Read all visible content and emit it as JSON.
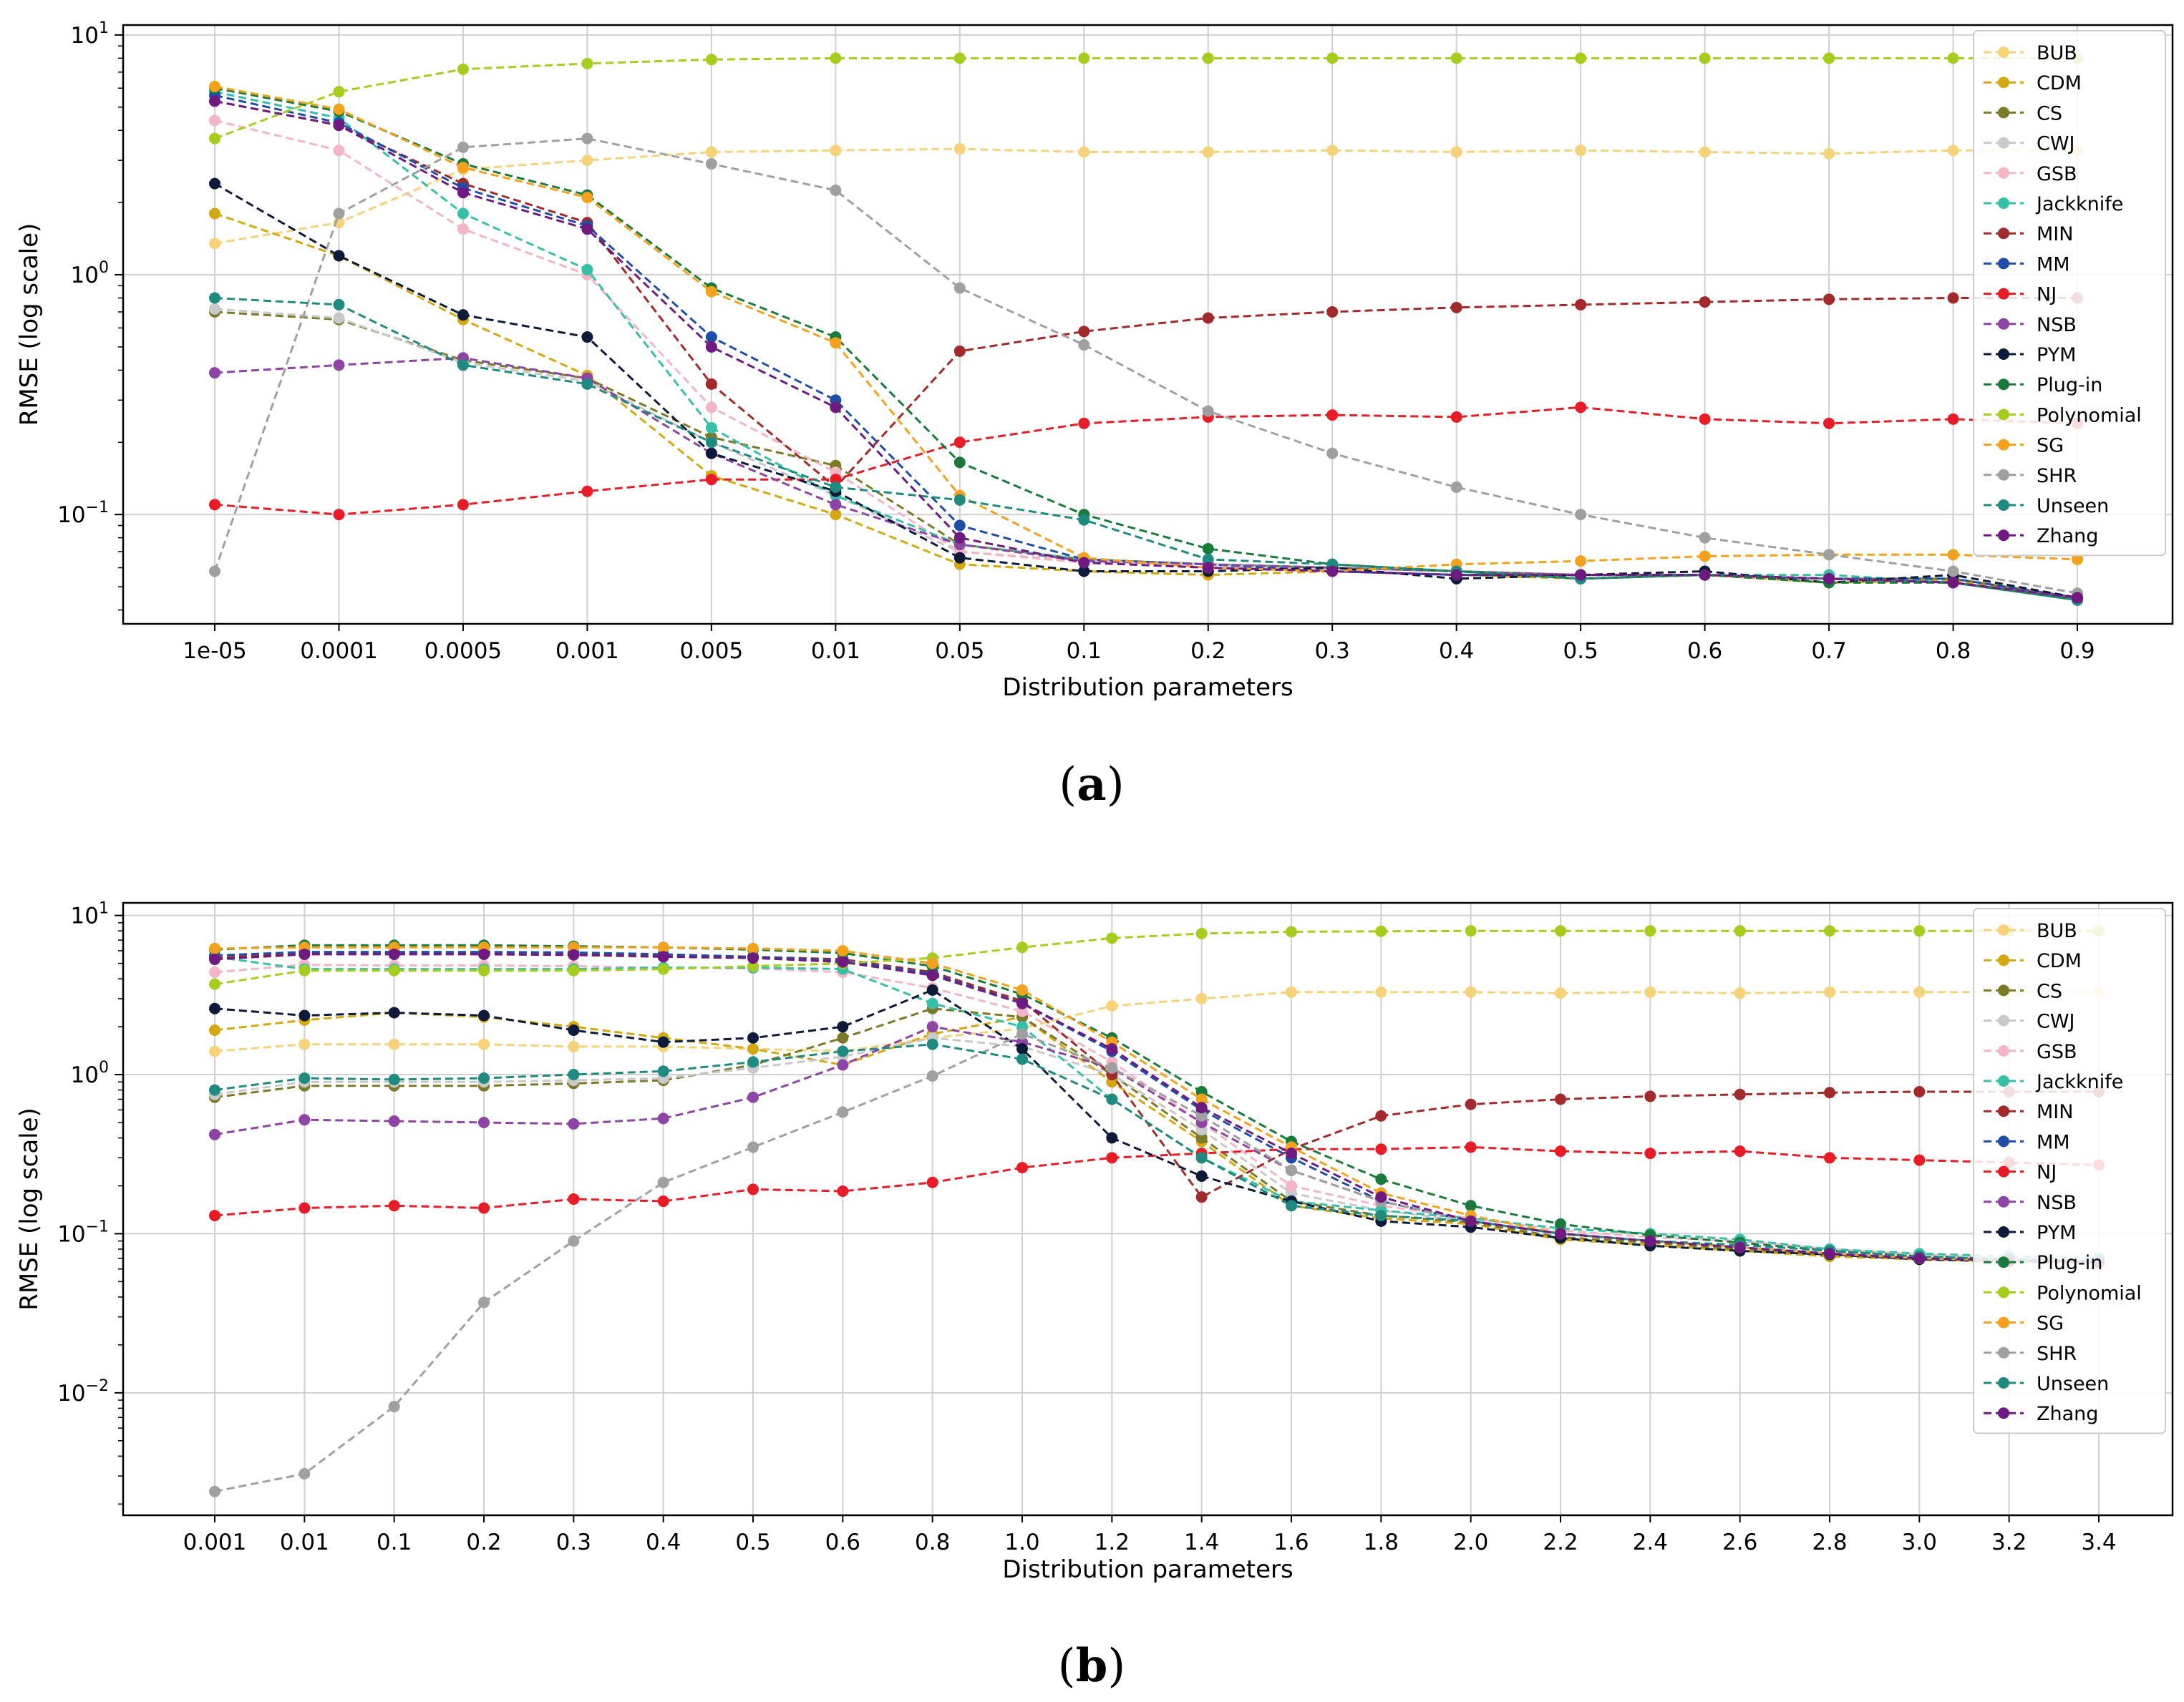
{
  "chart_data": [
    {
      "type": "line",
      "caption": "(a)",
      "caption_letter": "a",
      "xlabel": "Distribution parameters",
      "ylabel": "RMSE (log scale)",
      "yscale": "log",
      "ylim": [
        0.035,
        11
      ],
      "yticks": [
        {
          "value": 0.1,
          "base": "10",
          "exp": "−1"
        },
        {
          "value": 1,
          "base": "10",
          "exp": "0"
        },
        {
          "value": 10,
          "base": "10",
          "exp": "1"
        }
      ],
      "grid": true,
      "legend_position": "top-right",
      "categories": [
        "1e-05",
        "0.0001",
        "0.0005",
        "0.001",
        "0.005",
        "0.01",
        "0.05",
        "0.1",
        "0.2",
        "0.3",
        "0.4",
        "0.5",
        "0.6",
        "0.7",
        "0.8",
        "0.9"
      ],
      "series": [
        {
          "name": "BUB",
          "color": "#f6d37a",
          "values": [
            1.35,
            1.65,
            2.75,
            3.0,
            3.25,
            3.3,
            3.35,
            3.25,
            3.25,
            3.3,
            3.25,
            3.3,
            3.25,
            3.2,
            3.3,
            3.3
          ]
        },
        {
          "name": "CDM",
          "color": "#d4a810",
          "values": [
            1.8,
            1.2,
            0.65,
            0.38,
            0.145,
            0.1,
            0.062,
            0.058,
            0.056,
            0.058,
            0.056,
            0.054,
            0.056,
            0.052,
            0.053,
            0.045
          ]
        },
        {
          "name": "CS",
          "color": "#7a7a28",
          "values": [
            0.7,
            0.65,
            0.44,
            0.37,
            0.21,
            0.16,
            0.075,
            0.065,
            0.062,
            0.06,
            0.058,
            0.056,
            0.056,
            0.054,
            0.054,
            0.045
          ]
        },
        {
          "name": "CWJ",
          "color": "#c9c9c9",
          "values": [
            0.72,
            0.66,
            0.43,
            0.36,
            0.2,
            0.12,
            0.07,
            0.064,
            0.062,
            0.058,
            0.056,
            0.056,
            0.056,
            0.054,
            0.052,
            0.045
          ]
        },
        {
          "name": "GSB",
          "color": "#f4b6c6",
          "values": [
            4.4,
            3.3,
            1.55,
            1.0,
            0.28,
            0.15,
            0.07,
            0.063,
            0.06,
            0.058,
            0.056,
            0.056,
            0.056,
            0.054,
            0.052,
            0.044
          ]
        },
        {
          "name": "Jackknife",
          "color": "#36c0a8",
          "values": [
            5.8,
            4.5,
            1.8,
            1.05,
            0.23,
            0.12,
            0.075,
            0.065,
            0.062,
            0.06,
            0.058,
            0.056,
            0.056,
            0.056,
            0.052,
            0.044
          ]
        },
        {
          "name": "MIN",
          "color": "#a32a2a",
          "values": [
            5.3,
            4.2,
            2.4,
            1.65,
            0.35,
            0.13,
            0.48,
            0.58,
            0.66,
            0.7,
            0.73,
            0.75,
            0.77,
            0.79,
            0.8,
            0.8
          ]
        },
        {
          "name": "MM",
          "color": "#1f4ea8",
          "values": [
            5.6,
            4.3,
            2.3,
            1.6,
            0.55,
            0.3,
            0.09,
            0.065,
            0.062,
            0.058,
            0.056,
            0.056,
            0.056,
            0.054,
            0.054,
            0.045
          ]
        },
        {
          "name": "NJ",
          "color": "#e81c26",
          "values": [
            0.11,
            0.1,
            0.11,
            0.125,
            0.14,
            0.14,
            0.2,
            0.24,
            0.255,
            0.26,
            0.255,
            0.28,
            0.25,
            0.24,
            0.25,
            0.24
          ]
        },
        {
          "name": "NSB",
          "color": "#8e44a4",
          "values": [
            0.39,
            0.42,
            0.45,
            0.37,
            0.18,
            0.11,
            0.075,
            0.064,
            0.062,
            0.06,
            0.058,
            0.056,
            0.056,
            0.054,
            0.052,
            0.045
          ]
        },
        {
          "name": "PYM",
          "color": "#0e1a3a",
          "values": [
            2.4,
            1.2,
            0.68,
            0.55,
            0.18,
            0.125,
            0.066,
            0.058,
            0.058,
            0.06,
            0.054,
            0.056,
            0.058,
            0.052,
            0.056,
            0.045
          ]
        },
        {
          "name": "Plug-in",
          "color": "#1a7a3a",
          "values": [
            6.0,
            4.8,
            2.9,
            2.15,
            0.88,
            0.55,
            0.165,
            0.1,
            0.072,
            0.062,
            0.058,
            0.054,
            0.056,
            0.052,
            0.052,
            0.044
          ]
        },
        {
          "name": "Polynomial",
          "color": "#a6cc1e",
          "values": [
            3.7,
            5.8,
            7.2,
            7.6,
            7.9,
            8.0,
            8.0,
            8.0,
            8.0,
            8.0,
            8.0,
            8.0,
            8.0,
            8.0,
            8.0,
            8.0
          ]
        },
        {
          "name": "SG",
          "color": "#f4a21e",
          "values": [
            6.1,
            4.9,
            2.8,
            2.1,
            0.85,
            0.52,
            0.12,
            0.066,
            0.06,
            0.058,
            0.062,
            0.064,
            0.067,
            0.068,
            0.068,
            0.065
          ]
        },
        {
          "name": "SHR",
          "color": "#a0a0a0",
          "values": [
            0.058,
            1.8,
            3.4,
            3.7,
            2.9,
            2.25,
            0.88,
            0.51,
            0.27,
            0.18,
            0.13,
            0.1,
            0.08,
            0.068,
            0.058,
            0.047
          ]
        },
        {
          "name": "Unseen",
          "color": "#1f8a80",
          "values": [
            0.8,
            0.75,
            0.42,
            0.35,
            0.2,
            0.13,
            0.115,
            0.095,
            0.065,
            0.062,
            0.058,
            0.054,
            0.056,
            0.054,
            0.052,
            0.044
          ]
        },
        {
          "name": "Zhang",
          "color": "#6e1a80",
          "values": [
            5.3,
            4.2,
            2.2,
            1.55,
            0.5,
            0.28,
            0.08,
            0.063,
            0.06,
            0.058,
            0.056,
            0.056,
            0.056,
            0.054,
            0.052,
            0.045
          ]
        }
      ]
    },
    {
      "type": "line",
      "caption": "(b)",
      "caption_letter": "b",
      "xlabel": "Distribution parameters",
      "ylabel": "RMSE (log scale)",
      "yscale": "log",
      "ylim": [
        0.0017,
        12
      ],
      "yticks": [
        {
          "value": 0.01,
          "base": "10",
          "exp": "−2"
        },
        {
          "value": 0.1,
          "base": "10",
          "exp": "−1"
        },
        {
          "value": 1,
          "base": "10",
          "exp": "0"
        },
        {
          "value": 10,
          "base": "10",
          "exp": "1"
        }
      ],
      "grid": true,
      "legend_position": "top-right",
      "categories": [
        "0.001",
        "0.01",
        "0.1",
        "0.2",
        "0.3",
        "0.4",
        "0.5",
        "0.6",
        "0.8",
        "1.0",
        "1.2",
        "1.4",
        "1.6",
        "1.8",
        "2.0",
        "2.2",
        "2.4",
        "2.6",
        "2.8",
        "3.0",
        "3.2",
        "3.4"
      ],
      "series": [
        {
          "name": "BUB",
          "color": "#f6d37a",
          "values": [
            1.4,
            1.55,
            1.55,
            1.55,
            1.5,
            1.5,
            1.45,
            1.4,
            1.7,
            1.95,
            2.7,
            3.0,
            3.3,
            3.3,
            3.3,
            3.25,
            3.3,
            3.25,
            3.3,
            3.3,
            3.3,
            3.3
          ]
        },
        {
          "name": "CDM",
          "color": "#d4a810",
          "values": [
            1.9,
            2.2,
            2.45,
            2.3,
            2.0,
            1.7,
            1.45,
            1.15,
            1.8,
            2.3,
            0.9,
            0.38,
            0.15,
            0.125,
            0.115,
            0.092,
            0.085,
            0.078,
            0.072,
            0.069,
            0.067,
            0.066
          ]
        },
        {
          "name": "CS",
          "color": "#7a7a28",
          "values": [
            0.72,
            0.85,
            0.85,
            0.85,
            0.88,
            0.92,
            1.15,
            1.7,
            2.6,
            2.3,
            1.0,
            0.4,
            0.16,
            0.13,
            0.118,
            0.095,
            0.088,
            0.08,
            0.074,
            0.07,
            0.068,
            0.066
          ]
        },
        {
          "name": "CWJ",
          "color": "#c9c9c9",
          "values": [
            0.75,
            0.9,
            0.9,
            0.9,
            0.92,
            0.95,
            1.1,
            1.3,
            1.7,
            1.5,
            1.0,
            0.45,
            0.18,
            0.14,
            0.12,
            0.1,
            0.09,
            0.082,
            0.075,
            0.07,
            0.068,
            0.066
          ]
        },
        {
          "name": "GSB",
          "color": "#f4b6c6",
          "values": [
            4.4,
            4.9,
            4.85,
            4.85,
            4.8,
            4.7,
            4.65,
            4.4,
            3.5,
            2.5,
            1.2,
            0.5,
            0.2,
            0.15,
            0.125,
            0.105,
            0.095,
            0.09,
            0.08,
            0.074,
            0.07,
            0.068
          ]
        },
        {
          "name": "Jackknife",
          "color": "#36c0a8",
          "values": [
            5.5,
            4.6,
            4.6,
            4.6,
            4.6,
            4.7,
            4.7,
            4.6,
            2.8,
            2.0,
            0.7,
            0.3,
            0.16,
            0.14,
            0.125,
            0.108,
            0.1,
            0.092,
            0.08,
            0.075,
            0.072,
            0.07
          ]
        },
        {
          "name": "MIN",
          "color": "#a32a2a",
          "values": [
            5.4,
            5.8,
            5.8,
            5.8,
            5.7,
            5.6,
            5.5,
            5.3,
            4.4,
            2.9,
            1.0,
            0.17,
            0.34,
            0.55,
            0.65,
            0.7,
            0.73,
            0.75,
            0.77,
            0.78,
            0.78,
            0.78
          ]
        },
        {
          "name": "MM",
          "color": "#1f4ea8",
          "values": [
            5.6,
            5.9,
            5.9,
            5.9,
            5.85,
            5.7,
            5.5,
            5.2,
            4.3,
            2.8,
            1.4,
            0.6,
            0.3,
            0.16,
            0.12,
            0.1,
            0.09,
            0.082,
            0.075,
            0.07,
            0.068,
            0.066
          ]
        },
        {
          "name": "NJ",
          "color": "#e81c26",
          "values": [
            0.13,
            0.145,
            0.15,
            0.145,
            0.165,
            0.16,
            0.19,
            0.185,
            0.21,
            0.26,
            0.3,
            0.32,
            0.34,
            0.34,
            0.35,
            0.33,
            0.32,
            0.33,
            0.3,
            0.29,
            0.28,
            0.27
          ]
        },
        {
          "name": "NSB",
          "color": "#8e44a4",
          "values": [
            0.42,
            0.52,
            0.51,
            0.5,
            0.49,
            0.53,
            0.72,
            1.15,
            2.0,
            1.6,
            1.1,
            0.5,
            0.25,
            0.16,
            0.12,
            0.1,
            0.09,
            0.082,
            0.075,
            0.07,
            0.068,
            0.066
          ]
        },
        {
          "name": "PYM",
          "color": "#0e1a3a",
          "values": [
            2.6,
            2.35,
            2.45,
            2.35,
            1.9,
            1.6,
            1.7,
            2.0,
            3.4,
            1.45,
            0.4,
            0.23,
            0.16,
            0.12,
            0.11,
            0.094,
            0.084,
            0.078,
            0.074,
            0.069,
            0.067,
            0.066
          ]
        },
        {
          "name": "Plug-in",
          "color": "#1a7a3a",
          "values": [
            6.1,
            6.5,
            6.5,
            6.5,
            6.4,
            6.3,
            6.1,
            5.8,
            4.8,
            3.2,
            1.7,
            0.78,
            0.38,
            0.22,
            0.15,
            0.115,
            0.098,
            0.088,
            0.078,
            0.072,
            0.069,
            0.067
          ]
        },
        {
          "name": "Polynomial",
          "color": "#a6cc1e",
          "values": [
            3.7,
            4.5,
            4.5,
            4.5,
            4.5,
            4.6,
            4.8,
            5.0,
            5.4,
            6.3,
            7.2,
            7.7,
            7.9,
            7.95,
            8.0,
            8.0,
            8.0,
            8.0,
            8.0,
            8.0,
            8.0,
            8.0
          ]
        },
        {
          "name": "SG",
          "color": "#f4a21e",
          "values": [
            6.2,
            6.3,
            6.3,
            6.3,
            6.3,
            6.3,
            6.2,
            6.0,
            5.0,
            3.4,
            1.6,
            0.7,
            0.35,
            0.18,
            0.13,
            0.1,
            0.09,
            0.082,
            0.075,
            0.07,
            0.068,
            0.066
          ]
        },
        {
          "name": "SHR",
          "color": "#a0a0a0",
          "values": [
            0.0024,
            0.0031,
            0.0082,
            0.037,
            0.09,
            0.21,
            0.35,
            0.58,
            0.98,
            1.8,
            1.1,
            0.55,
            0.25,
            0.16,
            0.12,
            0.1,
            0.09,
            0.082,
            0.075,
            0.07,
            0.068,
            0.066
          ]
        },
        {
          "name": "Unseen",
          "color": "#1f8a80",
          "values": [
            0.8,
            0.95,
            0.93,
            0.95,
            1.0,
            1.05,
            1.2,
            1.4,
            1.55,
            1.25,
            0.7,
            0.3,
            0.15,
            0.13,
            0.12,
            0.1,
            0.09,
            0.085,
            0.078,
            0.072,
            0.069,
            0.067
          ]
        },
        {
          "name": "Zhang",
          "color": "#6e1a80",
          "values": [
            5.3,
            5.7,
            5.7,
            5.7,
            5.65,
            5.5,
            5.4,
            5.1,
            4.2,
            2.8,
            1.45,
            0.62,
            0.32,
            0.17,
            0.12,
            0.1,
            0.09,
            0.082,
            0.075,
            0.07,
            0.068,
            0.066
          ]
        }
      ]
    }
  ]
}
